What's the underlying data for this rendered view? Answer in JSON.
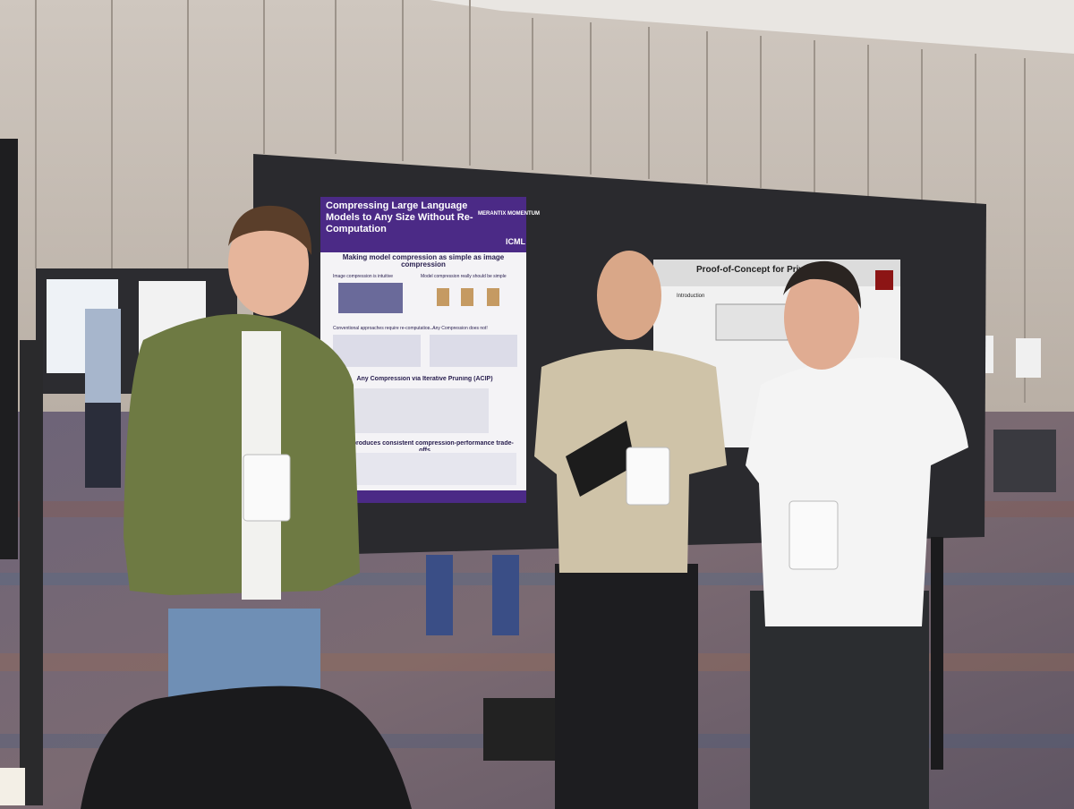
{
  "posters": [
    {
      "title": "Compressing Large Language Models to Any Size Without Re-Computation",
      "logos": [
        "MERANTIX MOMENTUM",
        "ICML"
      ],
      "headings": [
        "Making model compression as simple as image compression",
        "Image compression is intuitive",
        "Model compression really should be simple",
        "Conventional approaches require re-computation ...",
        "... Any Compression does not!",
        "Any Compression via Iterative Pruning (ACIP)",
        "ACIP produces consistent compression-performance trade-offs"
      ]
    },
    {
      "title": "Proof-of-Concept for Private Lo",
      "sections": [
        "Introduction"
      ]
    }
  ]
}
